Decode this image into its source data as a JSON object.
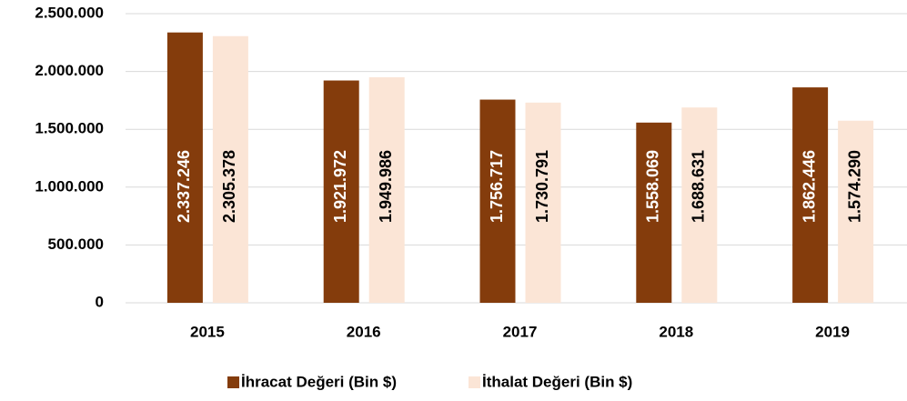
{
  "chart_data": {
    "type": "bar",
    "categories": [
      "2015",
      "2016",
      "2017",
      "2018",
      "2019"
    ],
    "series": [
      {
        "name": "İhracat Değeri (Bin $)",
        "color": "#843c0c",
        "values": [
          2337246,
          1921972,
          1756717,
          1558069,
          1862446
        ],
        "value_labels": [
          "2.337.246",
          "1.921.972",
          "1.756.717",
          "1.558.069",
          "1.862.446"
        ]
      },
      {
        "name": "İthalat Değeri (Bin $)",
        "color": "#fbe5d6",
        "values": [
          2305378,
          1949986,
          1730791,
          1688631,
          1574290
        ],
        "value_labels": [
          "2.305.378",
          "1.949.986",
          "1.730.791",
          "1.688.631",
          "1.574.290"
        ]
      }
    ],
    "ylim": [
      0,
      2500000
    ],
    "yticks": [
      0,
      {
        "value": 500000,
        "label": "500.000"
      },
      {
        "value": 1000000,
        "label": "1.000.000"
      },
      {
        "value": 1500000,
        "label": "1.500.000"
      },
      {
        "value": 2000000,
        "label": "2.000.000"
      },
      {
        "value": 2500000,
        "label": "2.500.000"
      }
    ],
    "grid": true,
    "legend": "bottom"
  }
}
